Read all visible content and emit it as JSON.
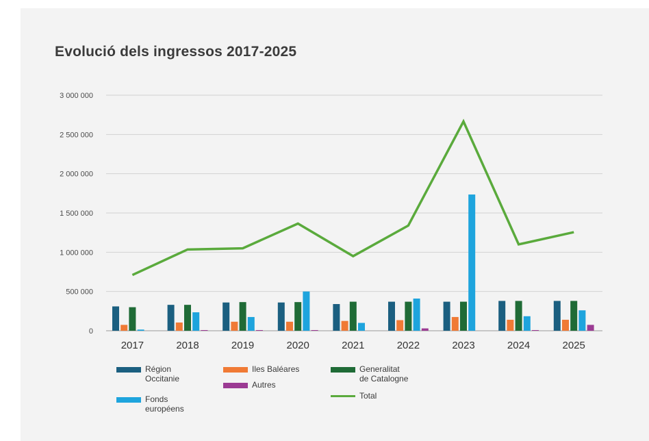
{
  "chart_data": {
    "type": "bar",
    "title": "Evolució dels ingressos 2017-2025",
    "categories": [
      "2017",
      "2018",
      "2019",
      "2020",
      "2021",
      "2022",
      "2023",
      "2024",
      "2025"
    ],
    "ylim": [
      0,
      3000000
    ],
    "yticks": [
      0,
      500000,
      1000000,
      1500000,
      2000000,
      2500000,
      3000000
    ],
    "ytick_labels": [
      "0",
      "500 000",
      "1 000 000",
      "1 500 000",
      "2 000 000",
      "2 500 000",
      "3 000 000"
    ],
    "grid": true,
    "legend_position": "bottom",
    "series": [
      {
        "name": "Région\nOccitanie",
        "kind": "bar",
        "color": "#1b5f80",
        "values": [
          310000,
          330000,
          360000,
          360000,
          340000,
          370000,
          370000,
          380000,
          380000
        ]
      },
      {
        "name": "Iles Baléares",
        "kind": "bar",
        "color": "#f07a35",
        "values": [
          75000,
          105000,
          115000,
          115000,
          125000,
          135000,
          175000,
          140000,
          140000
        ]
      },
      {
        "name": "Generalitat\nde Catalogne",
        "kind": "bar",
        "color": "#1f6b36",
        "values": [
          300000,
          330000,
          365000,
          365000,
          370000,
          370000,
          370000,
          380000,
          380000
        ]
      },
      {
        "name": "Fonds\neuropéens",
        "kind": "bar",
        "color": "#1ea4dd",
        "values": [
          15000,
          235000,
          175000,
          500000,
          100000,
          410000,
          1735000,
          185000,
          260000
        ]
      },
      {
        "name": "Autres",
        "kind": "bar",
        "color": "#9b3b93",
        "values": [
          0,
          5000,
          5000,
          5000,
          0,
          30000,
          0,
          5000,
          75000
        ]
      },
      {
        "name": "Total",
        "kind": "line",
        "color": "#5aaa3c",
        "values": [
          710000,
          1035000,
          1050000,
          1365000,
          950000,
          1340000,
          2665000,
          1100000,
          1255000
        ]
      }
    ]
  }
}
